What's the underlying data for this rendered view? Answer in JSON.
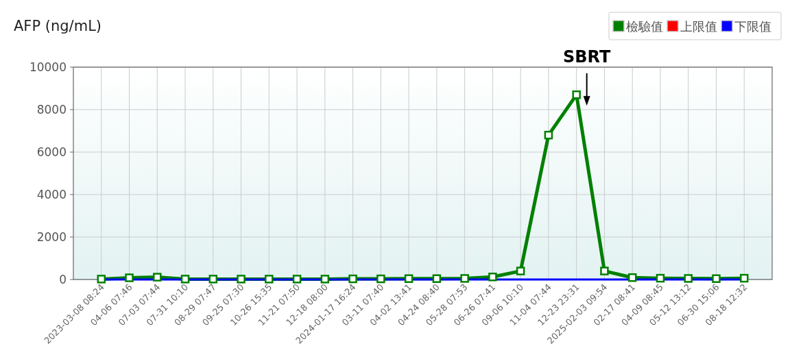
{
  "chart_data": {
    "type": "line",
    "title": "AFP (ng/mL)",
    "categories": [
      "2023-03-08 08:24",
      "04-06 07:46",
      "07-03 07:44",
      "07-31 10:10",
      "08-29 07:47",
      "09-25 07:30",
      "10-26 15:35",
      "11-21 07:50",
      "12-18 08:00",
      "2024-01-17 16:24",
      "03-11 07:40",
      "04-02 13:41",
      "04-24 08:40",
      "05-28 07:53",
      "06-26 07:41",
      "09-06 10:10",
      "11-04 07:44",
      "12-23 23:31",
      "2025-02-03 09:54",
      "02-17 08:41",
      "04-09 08:45",
      "05-12 13:12",
      "06-30 15:06",
      "08-18 12:32"
    ],
    "series": [
      {
        "name": "檢驗值",
        "color": "#008000",
        "marker": "square",
        "values": [
          20,
          80,
          110,
          20,
          20,
          20,
          20,
          20,
          20,
          30,
          30,
          40,
          40,
          50,
          120,
          400,
          6800,
          8700,
          400,
          90,
          60,
          50,
          40,
          60
        ]
      },
      {
        "name": "上限值",
        "color": "#ff0000",
        "marker": "none",
        "values": [
          null,
          null,
          null,
          null,
          null,
          null,
          null,
          null,
          null,
          null,
          null,
          null,
          null,
          null,
          null,
          null,
          null,
          null,
          null,
          null,
          null,
          null,
          null,
          null
        ]
      },
      {
        "name": "下限值",
        "color": "#0000ff",
        "marker": "none",
        "values": [
          0,
          0,
          0,
          0,
          0,
          0,
          0,
          0,
          0,
          0,
          0,
          0,
          0,
          0,
          0,
          0,
          0,
          0,
          0,
          0,
          0,
          0,
          0,
          0
        ]
      }
    ],
    "ylim": [
      0,
      10000
    ],
    "yticks": [
      0,
      2000,
      4000,
      6000,
      8000,
      10000
    ],
    "grid": true,
    "legend": "top right",
    "line_style": "solid",
    "annotations": [
      {
        "text": "SBRT",
        "x": "12-23 23:31",
        "y": 8700
      }
    ]
  }
}
